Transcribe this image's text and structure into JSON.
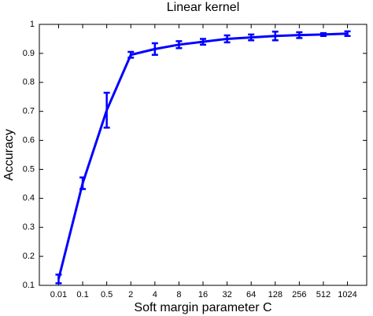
{
  "chart_data": {
    "type": "line",
    "title": "Linear kernel",
    "x_label": "Soft margin parameter C",
    "y_label": "Accuracy",
    "categories": [
      "0.01",
      "0.1",
      "0.5",
      "2",
      "4",
      "8",
      "16",
      "32",
      "64",
      "128",
      "256",
      "512",
      "1024"
    ],
    "series": [
      {
        "color": "#0000ff",
        "values": [
          0.122,
          0.452,
          0.704,
          0.895,
          0.915,
          0.93,
          0.94,
          0.95,
          0.955,
          0.96,
          0.963,
          0.965,
          0.968
        ],
        "errors": [
          0.015,
          0.02,
          0.06,
          0.01,
          0.02,
          0.012,
          0.01,
          0.012,
          0.01,
          0.015,
          0.01,
          0.005,
          0.008
        ]
      }
    ],
    "ylim": [
      0.1,
      1
    ],
    "yticks": [
      0.1,
      0.2,
      0.3,
      0.4,
      0.5,
      0.6,
      0.7,
      0.8,
      0.9,
      1
    ],
    "grid": false
  }
}
